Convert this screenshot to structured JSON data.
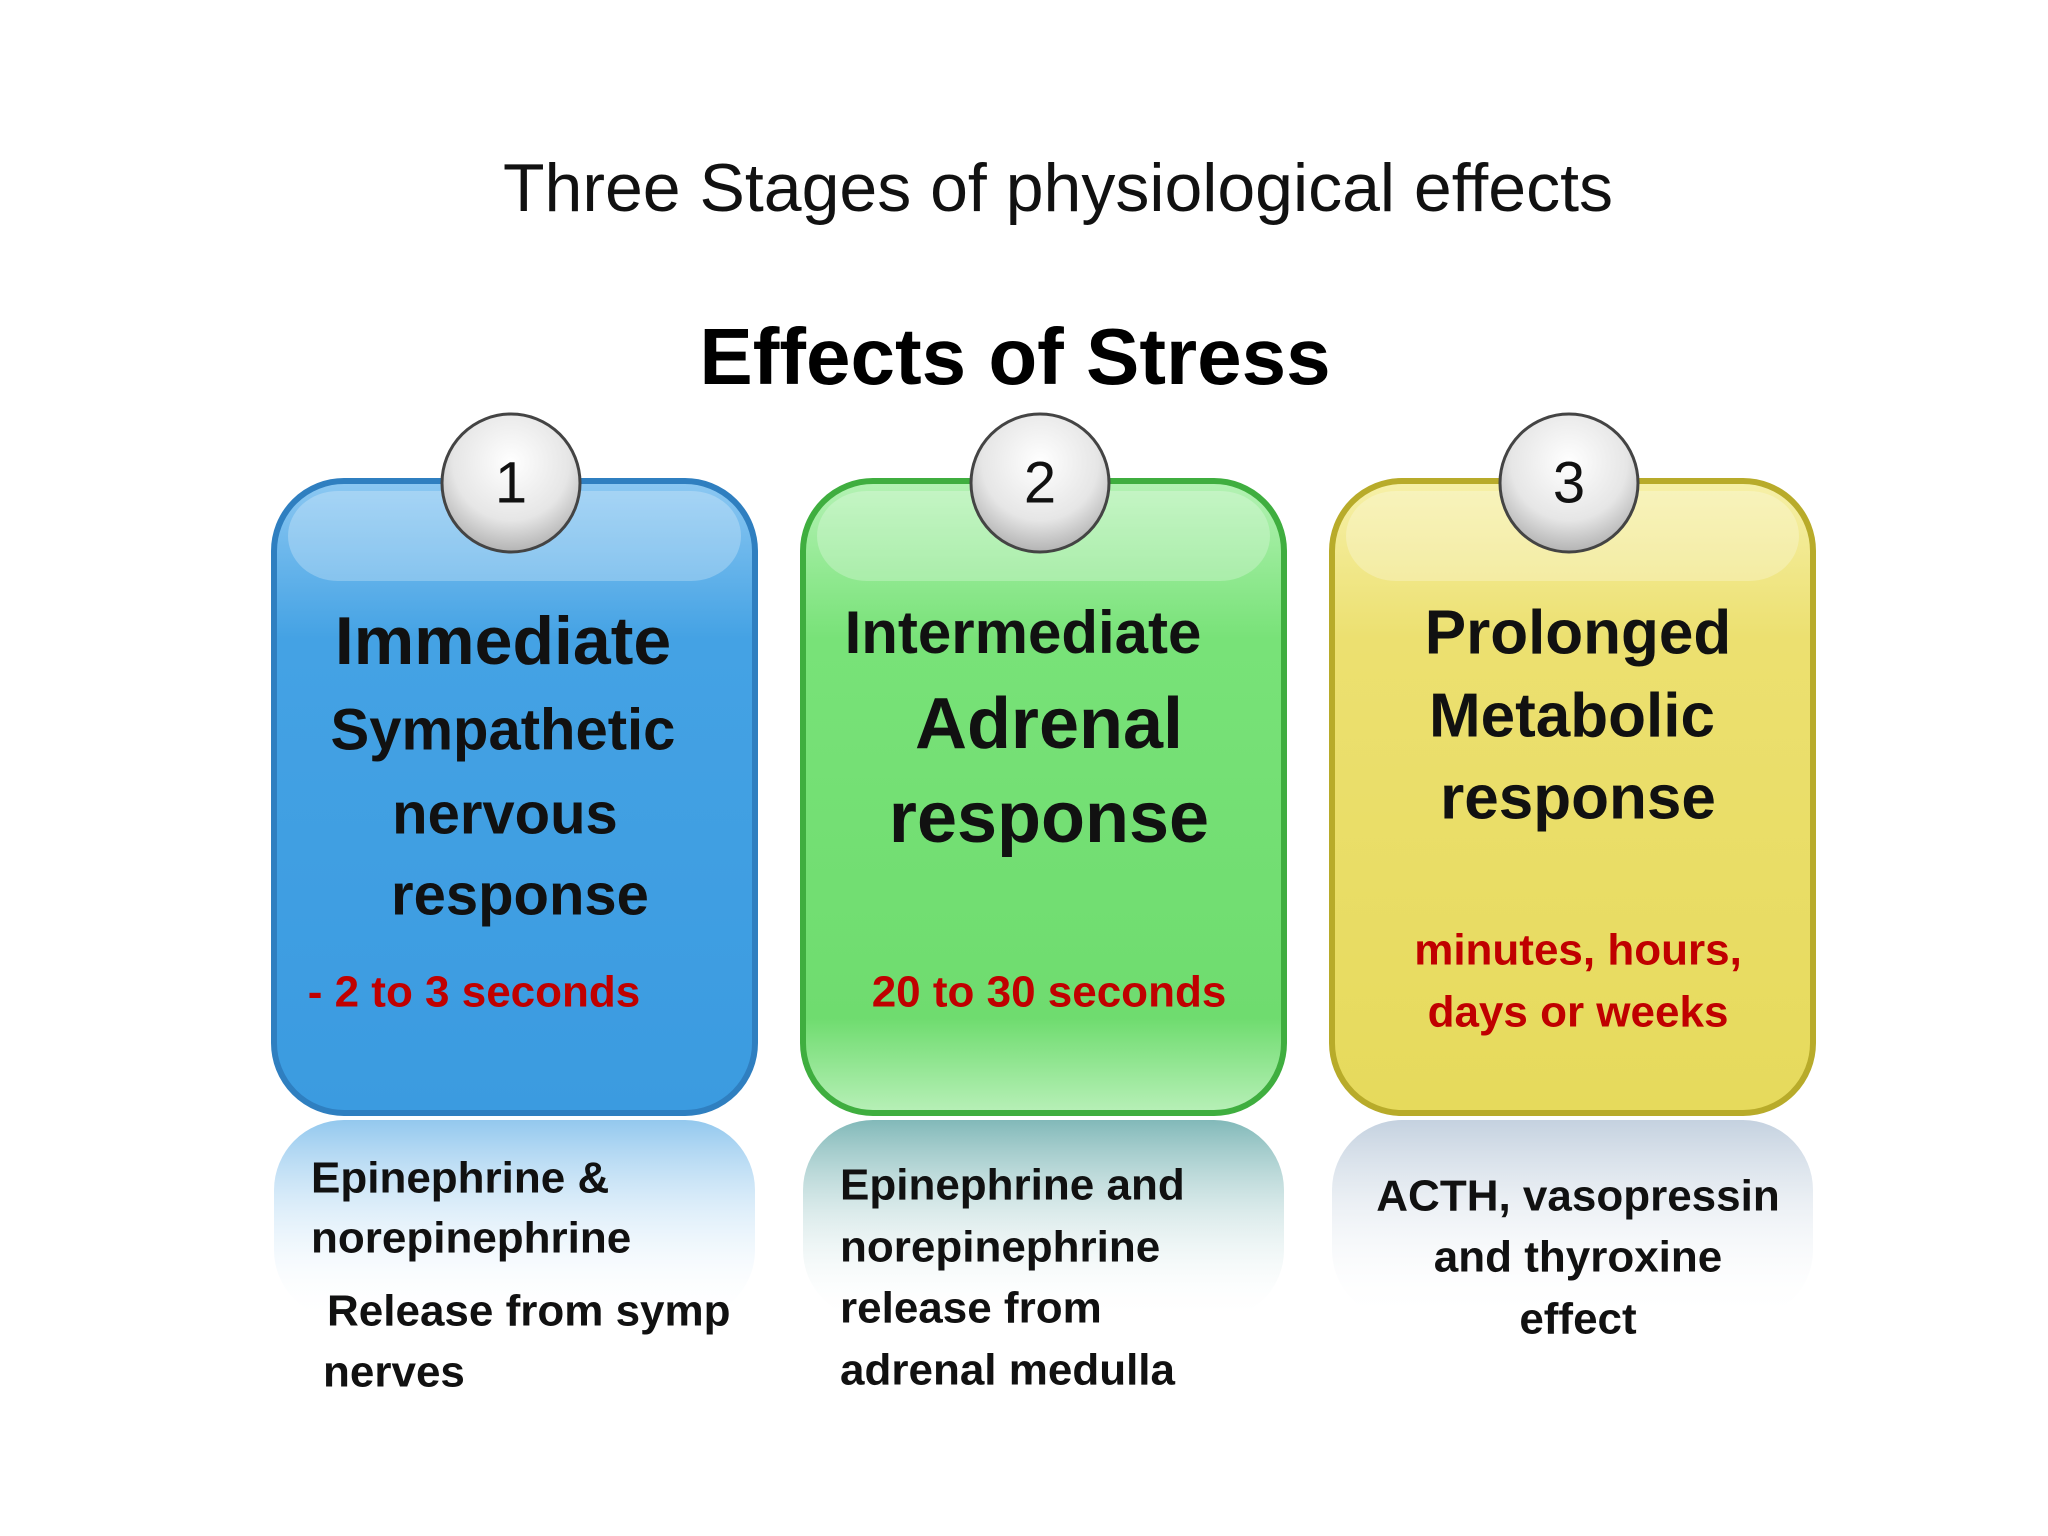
{
  "header": {
    "title": "Three Stages of physiological effects",
    "subtitle": "Effects of Stress"
  },
  "stages": [
    {
      "number": "1",
      "title": [
        "Immediate",
        "Sympathetic",
        "nervous",
        "response"
      ],
      "time": [
        "- 2 to 3 seconds"
      ],
      "effect": [
        "Epinephrine &",
        "norepinephrine",
        "Release from symp",
        "nerves"
      ]
    },
    {
      "number": "2",
      "title": [
        "Intermediate",
        "Adrenal",
        "response"
      ],
      "time": [
        "20 to 30 seconds"
      ],
      "effect": [
        "Epinephrine and",
        "norepinephrine",
        "release from",
        "adrenal medulla"
      ]
    },
    {
      "number": "3",
      "title": [
        "Prolonged",
        "Metabolic",
        "response"
      ],
      "time": [
        "minutes, hours,",
        "days or weeks"
      ],
      "effect": [
        "ACTH, vasopressin",
        "and thyroxine",
        "effect"
      ]
    }
  ]
}
